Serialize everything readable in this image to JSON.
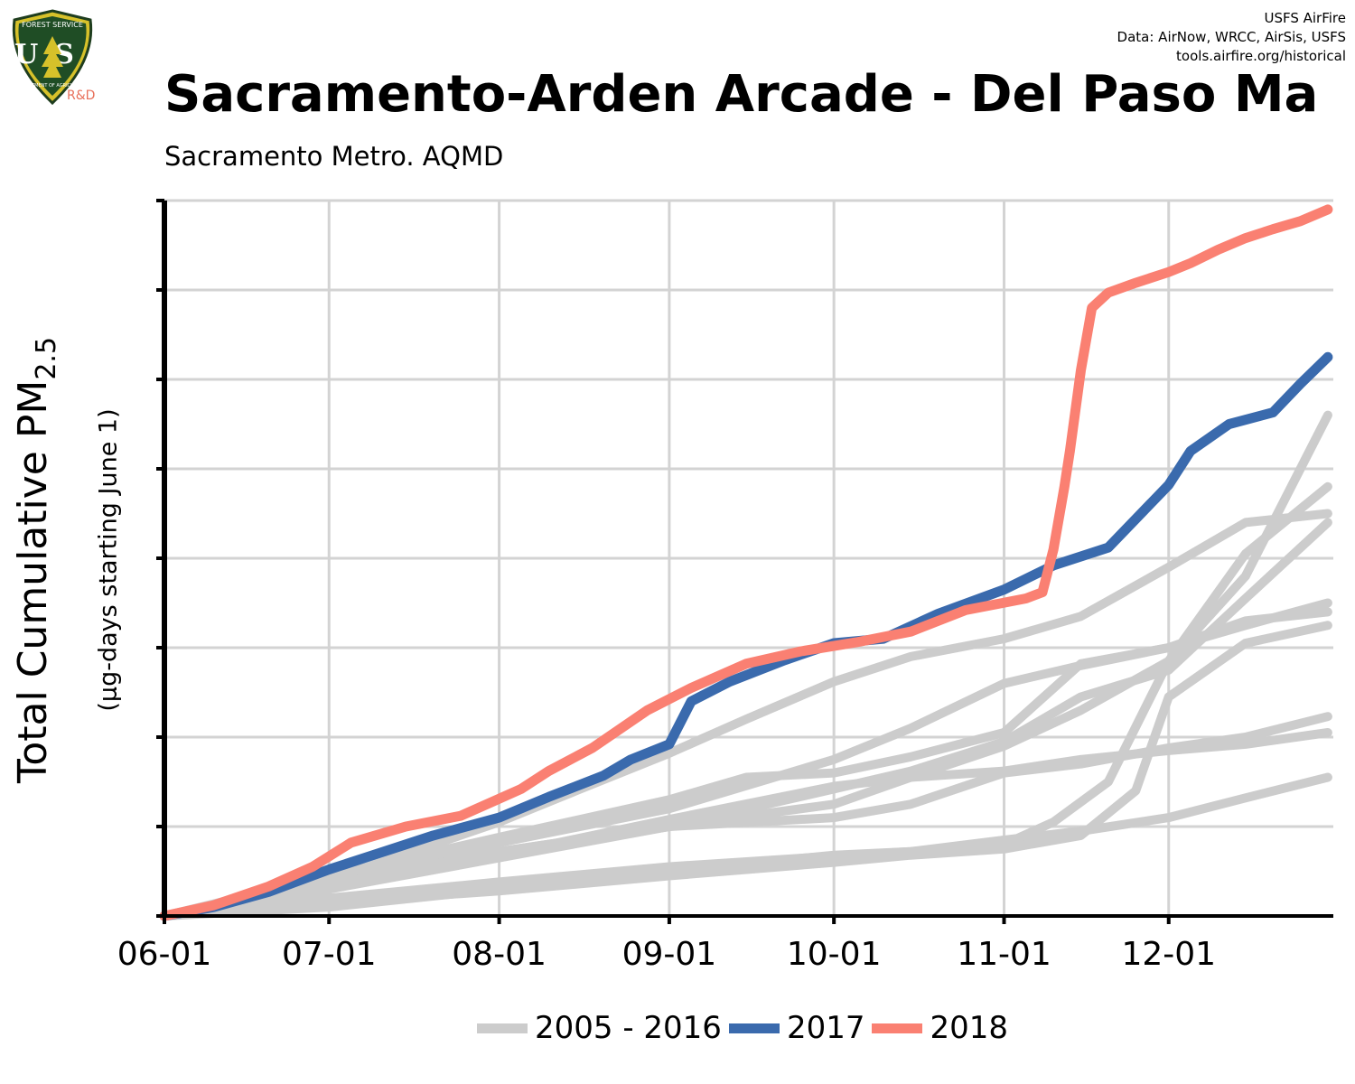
{
  "header": {
    "logo_text_top": "FOREST SERVICE",
    "logo_letters": "US",
    "logo_text_bottom": "DEPARTMENT OF AGRICULTURE",
    "logo_sub": "R&D",
    "credits": [
      "USFS AirFire",
      "Data: AirNow, WRCC, AirSis, USFS",
      "tools.airfire.org/historical"
    ]
  },
  "chart_data": {
    "type": "line",
    "title": "Sacramento-Arden Arcade - Del Paso Ma",
    "subtitle": "Sacramento Metro. AQMD",
    "ylabel_main": "Total Cumulative PM",
    "ylabel_sub_script": "2.5",
    "ylabel_units": "(µg-days starting June 1)",
    "x_domain": [
      "06-01",
      "12-31"
    ],
    "x_ticks": [
      "06-01",
      "07-01",
      "08-01",
      "09-01",
      "10-01",
      "11-01",
      "12-01"
    ],
    "y_range": [
      0,
      8
    ],
    "y_tick_count": 9,
    "y_tick_labels": [],
    "grid": true,
    "legend_position": "bottom",
    "colors": {
      "historical": "#cccccc",
      "2017": "#3a6aad",
      "2018": "#fa8072"
    },
    "legend": [
      {
        "label": "2005 - 2016",
        "key": "historical"
      },
      {
        "label": "2017",
        "key": "2017"
      },
      {
        "label": "2018",
        "key": "2018"
      }
    ],
    "series": [
      {
        "name": "2018",
        "color_key": "2018",
        "points": [
          [
            "06-01",
            0
          ],
          [
            "06-10",
            0.12
          ],
          [
            "06-20",
            0.33
          ],
          [
            "06-28",
            0.55
          ],
          [
            "07-05",
            0.82
          ],
          [
            "07-15",
            1.0
          ],
          [
            "07-25",
            1.12
          ],
          [
            "08-05",
            1.42
          ],
          [
            "08-10",
            1.62
          ],
          [
            "08-18",
            1.88
          ],
          [
            "08-28",
            2.3
          ],
          [
            "09-05",
            2.55
          ],
          [
            "09-15",
            2.82
          ],
          [
            "09-25",
            2.96
          ],
          [
            "10-05",
            3.06
          ],
          [
            "10-15",
            3.18
          ],
          [
            "10-25",
            3.42
          ],
          [
            "11-05",
            3.55
          ],
          [
            "11-08",
            3.62
          ],
          [
            "11-10",
            4.1
          ],
          [
            "11-12",
            4.8
          ],
          [
            "11-13",
            5.2
          ],
          [
            "11-15",
            6.1
          ],
          [
            "11-17",
            6.8
          ],
          [
            "11-20",
            6.97
          ],
          [
            "11-25",
            7.08
          ],
          [
            "12-01",
            7.2
          ],
          [
            "12-05",
            7.3
          ],
          [
            "12-10",
            7.45
          ],
          [
            "12-15",
            7.58
          ],
          [
            "12-20",
            7.68
          ],
          [
            "12-25",
            7.77
          ],
          [
            "12-30",
            7.9
          ]
        ]
      },
      {
        "name": "2017",
        "color_key": "2017",
        "points": [
          [
            "06-01",
            0
          ],
          [
            "06-10",
            0.1
          ],
          [
            "06-20",
            0.27
          ],
          [
            "07-01",
            0.52
          ],
          [
            "07-10",
            0.7
          ],
          [
            "07-20",
            0.9
          ],
          [
            "08-01",
            1.1
          ],
          [
            "08-10",
            1.33
          ],
          [
            "08-20",
            1.57
          ],
          [
            "08-25",
            1.75
          ],
          [
            "09-01",
            1.92
          ],
          [
            "09-05",
            2.4
          ],
          [
            "09-12",
            2.62
          ],
          [
            "09-22",
            2.86
          ],
          [
            "10-01",
            3.05
          ],
          [
            "10-10",
            3.1
          ],
          [
            "10-20",
            3.38
          ],
          [
            "11-01",
            3.65
          ],
          [
            "11-10",
            3.92
          ],
          [
            "11-20",
            4.12
          ],
          [
            "12-01",
            4.82
          ],
          [
            "12-05",
            5.2
          ],
          [
            "12-12",
            5.5
          ],
          [
            "12-20",
            5.63
          ],
          [
            "12-25",
            5.95
          ],
          [
            "12-30",
            6.25
          ]
        ]
      },
      {
        "name": "",
        "color_key": "historical",
        "points": [
          [
            "06-01",
            0
          ],
          [
            "07-01",
            0.4
          ],
          [
            "08-01",
            1.05
          ],
          [
            "08-15",
            1.4
          ],
          [
            "09-01",
            1.82
          ],
          [
            "09-15",
            2.2
          ],
          [
            "10-01",
            2.62
          ],
          [
            "10-15",
            2.9
          ],
          [
            "11-01",
            3.1
          ],
          [
            "11-15",
            3.35
          ],
          [
            "12-01",
            3.9
          ],
          [
            "12-15",
            4.4
          ],
          [
            "12-30",
            4.5
          ]
        ]
      },
      {
        "name": "",
        "color_key": "historical",
        "points": [
          [
            "06-01",
            0
          ],
          [
            "07-01",
            0.45
          ],
          [
            "08-01",
            0.88
          ],
          [
            "09-01",
            1.3
          ],
          [
            "09-15",
            1.55
          ],
          [
            "10-01",
            1.6
          ],
          [
            "10-15",
            1.78
          ],
          [
            "11-01",
            2.05
          ],
          [
            "11-15",
            2.82
          ],
          [
            "12-01",
            3.0
          ],
          [
            "12-15",
            3.25
          ],
          [
            "12-30",
            3.5
          ]
        ]
      },
      {
        "name": "",
        "color_key": "historical",
        "points": [
          [
            "06-01",
            0
          ],
          [
            "07-01",
            0.37
          ],
          [
            "08-01",
            0.82
          ],
          [
            "09-01",
            1.2
          ],
          [
            "10-01",
            1.75
          ],
          [
            "10-15",
            2.1
          ],
          [
            "11-01",
            2.6
          ],
          [
            "11-15",
            2.8
          ],
          [
            "12-01",
            3.0
          ],
          [
            "12-15",
            3.3
          ],
          [
            "12-30",
            3.4
          ]
        ]
      },
      {
        "name": "",
        "color_key": "historical",
        "points": [
          [
            "06-01",
            0
          ],
          [
            "07-01",
            0.35
          ],
          [
            "08-01",
            0.72
          ],
          [
            "09-01",
            1.0
          ],
          [
            "10-01",
            1.25
          ],
          [
            "10-15",
            1.55
          ],
          [
            "11-01",
            1.9
          ],
          [
            "11-15",
            2.3
          ],
          [
            "12-01",
            2.85
          ],
          [
            "12-15",
            3.8
          ],
          [
            "12-30",
            5.6
          ]
        ]
      },
      {
        "name": "",
        "color_key": "historical",
        "points": [
          [
            "06-01",
            0
          ],
          [
            "07-01",
            0.3
          ],
          [
            "08-01",
            0.65
          ],
          [
            "09-01",
            1.0
          ],
          [
            "10-01",
            1.42
          ],
          [
            "10-15",
            1.62
          ],
          [
            "11-01",
            1.95
          ],
          [
            "11-15",
            2.45
          ],
          [
            "12-01",
            2.75
          ],
          [
            "12-15",
            3.55
          ],
          [
            "12-30",
            4.4
          ]
        ]
      },
      {
        "name": "",
        "color_key": "historical",
        "points": [
          [
            "06-01",
            0
          ],
          [
            "07-01",
            0.34
          ],
          [
            "08-01",
            0.68
          ],
          [
            "09-01",
            1.08
          ],
          [
            "10-01",
            1.45
          ],
          [
            "10-15",
            1.55
          ],
          [
            "11-01",
            1.62
          ],
          [
            "11-15",
            1.75
          ],
          [
            "12-01",
            1.85
          ],
          [
            "12-15",
            1.92
          ],
          [
            "12-30",
            2.05
          ]
        ]
      },
      {
        "name": "",
        "color_key": "historical",
        "points": [
          [
            "06-01",
            0
          ],
          [
            "07-01",
            0.34
          ],
          [
            "08-01",
            0.72
          ],
          [
            "09-01",
            1.0
          ],
          [
            "10-01",
            1.1
          ],
          [
            "10-15",
            1.25
          ],
          [
            "11-01",
            1.6
          ],
          [
            "11-15",
            1.7
          ],
          [
            "12-01",
            1.88
          ],
          [
            "12-15",
            2.0
          ],
          [
            "12-30",
            2.23
          ]
        ]
      },
      {
        "name": "",
        "color_key": "historical",
        "points": [
          [
            "06-01",
            0
          ],
          [
            "07-01",
            0.2
          ],
          [
            "08-01",
            0.38
          ],
          [
            "09-01",
            0.55
          ],
          [
            "10-01",
            0.67
          ],
          [
            "10-15",
            0.72
          ],
          [
            "11-01",
            0.85
          ],
          [
            "11-15",
            0.95
          ],
          [
            "12-01",
            1.1
          ],
          [
            "12-15",
            1.32
          ],
          [
            "12-30",
            1.55
          ]
        ]
      },
      {
        "name": "",
        "color_key": "historical",
        "points": [
          [
            "06-01",
            0
          ],
          [
            "07-01",
            0.1
          ],
          [
            "08-01",
            0.3
          ],
          [
            "09-01",
            0.5
          ],
          [
            "10-01",
            0.68
          ],
          [
            "10-15",
            0.72
          ],
          [
            "11-01",
            0.8
          ],
          [
            "11-10",
            1.05
          ],
          [
            "11-20",
            1.5
          ],
          [
            "12-01",
            2.85
          ],
          [
            "12-15",
            4.05
          ],
          [
            "12-30",
            4.8
          ]
        ]
      },
      {
        "name": "",
        "color_key": "historical",
        "points": [
          [
            "06-01",
            0
          ],
          [
            "07-01",
            0.15
          ],
          [
            "08-01",
            0.28
          ],
          [
            "09-01",
            0.45
          ],
          [
            "10-01",
            0.6
          ],
          [
            "10-15",
            0.68
          ],
          [
            "11-01",
            0.75
          ],
          [
            "11-15",
            0.9
          ],
          [
            "11-25",
            1.4
          ],
          [
            "12-01",
            2.45
          ],
          [
            "12-15",
            3.05
          ],
          [
            "12-30",
            3.25
          ]
        ]
      }
    ]
  }
}
